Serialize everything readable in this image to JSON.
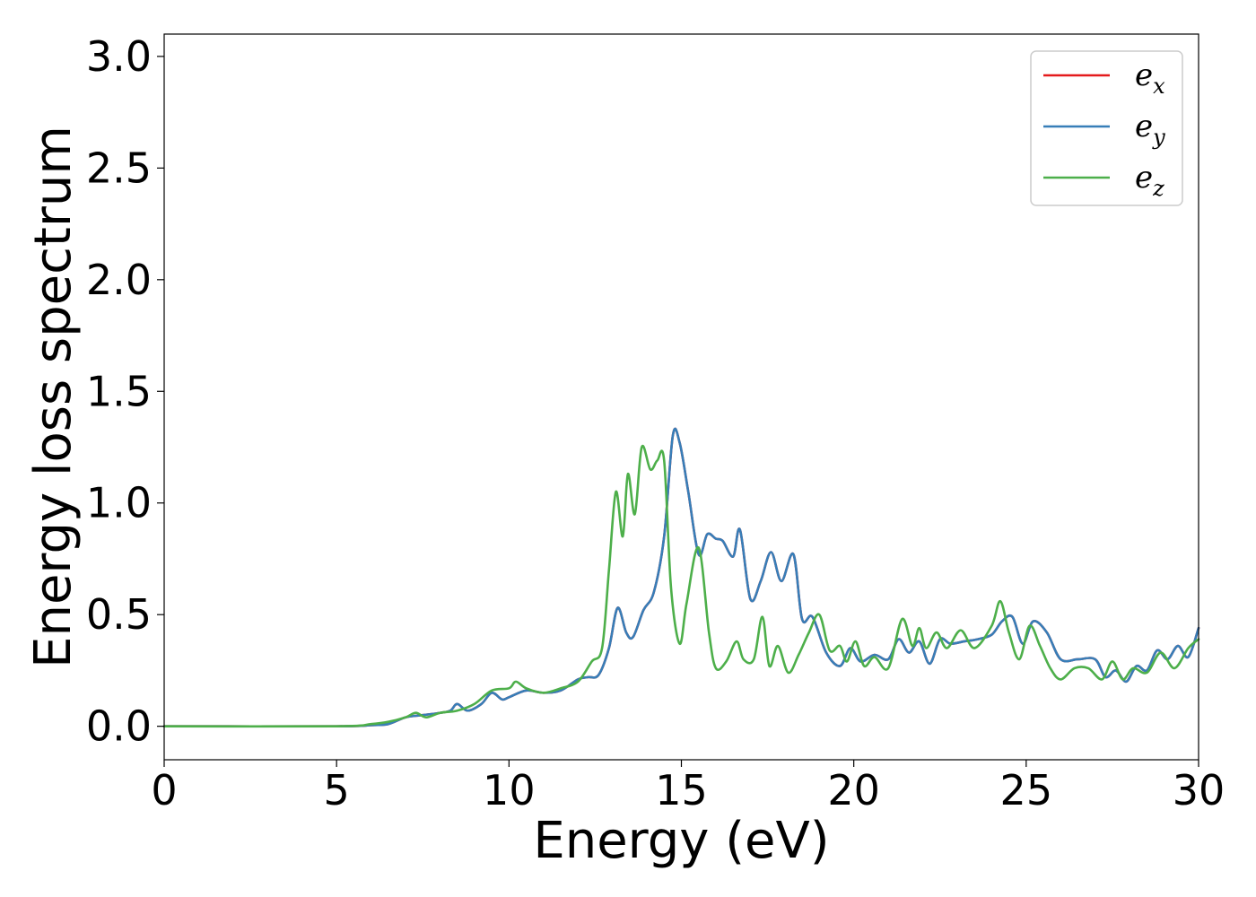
{
  "chart_data": {
    "type": "line",
    "title": "",
    "xlabel": "Energy (eV)",
    "ylabel": "Energy loss spectrum",
    "xlim": [
      0,
      30
    ],
    "ylim": [
      -0.15,
      3.1
    ],
    "xticks": [
      "0",
      "5",
      "10",
      "15",
      "20",
      "25",
      "30"
    ],
    "yticks": [
      "0.0",
      "0.5",
      "1.0",
      "1.5",
      "2.0",
      "2.5",
      "3.0"
    ],
    "grid": false,
    "legend_position": "top-right",
    "series": [
      {
        "name": "e",
        "sub": "x",
        "color": "#e41a1c",
        "x": [
          0,
          5,
          6,
          6.5,
          7,
          7.5,
          8,
          8.3,
          8.5,
          8.8,
          9.2,
          9.5,
          9.8,
          10,
          10.5,
          11,
          11.5,
          12,
          12.3,
          12.6,
          12.9,
          13.15,
          13.4,
          13.6,
          13.9,
          14.2,
          14.5,
          14.75,
          14.95,
          15.2,
          15.5,
          15.75,
          16,
          16.2,
          16.5,
          16.7,
          17,
          17.3,
          17.6,
          17.9,
          18.25,
          18.5,
          18.8,
          19.2,
          19.6,
          19.9,
          20.2,
          20.6,
          21,
          21.3,
          21.6,
          21.9,
          22.2,
          22.5,
          22.8,
          23.2,
          23.6,
          24,
          24.3,
          24.6,
          24.9,
          25.2,
          25.6,
          26,
          26.5,
          27,
          27.3,
          27.6,
          27.9,
          28.2,
          28.5,
          28.8,
          29.1,
          29.4,
          29.7,
          30
        ],
        "y": [
          0,
          0,
          0.005,
          0.01,
          0.04,
          0.05,
          0.06,
          0.07,
          0.1,
          0.07,
          0.1,
          0.15,
          0.12,
          0.13,
          0.16,
          0.15,
          0.16,
          0.21,
          0.22,
          0.23,
          0.35,
          0.53,
          0.42,
          0.4,
          0.52,
          0.6,
          0.85,
          1.3,
          1.27,
          1.05,
          0.77,
          0.86,
          0.84,
          0.83,
          0.76,
          0.88,
          0.57,
          0.65,
          0.78,
          0.65,
          0.77,
          0.48,
          0.49,
          0.33,
          0.27,
          0.35,
          0.29,
          0.32,
          0.3,
          0.39,
          0.33,
          0.38,
          0.28,
          0.39,
          0.37,
          0.38,
          0.39,
          0.41,
          0.47,
          0.49,
          0.37,
          0.47,
          0.42,
          0.3,
          0.3,
          0.3,
          0.22,
          0.25,
          0.2,
          0.27,
          0.25,
          0.34,
          0.3,
          0.36,
          0.31,
          0.44
        ]
      },
      {
        "name": "e",
        "sub": "y",
        "color": "#377eb8",
        "x": [
          0,
          5,
          6,
          6.5,
          7,
          7.5,
          8,
          8.3,
          8.5,
          8.8,
          9.2,
          9.5,
          9.8,
          10,
          10.5,
          11,
          11.5,
          12,
          12.3,
          12.6,
          12.9,
          13.15,
          13.4,
          13.6,
          13.9,
          14.2,
          14.5,
          14.75,
          14.95,
          15.2,
          15.5,
          15.75,
          16,
          16.2,
          16.5,
          16.7,
          17,
          17.3,
          17.6,
          17.9,
          18.25,
          18.5,
          18.8,
          19.2,
          19.6,
          19.9,
          20.2,
          20.6,
          21,
          21.3,
          21.6,
          21.9,
          22.2,
          22.5,
          22.8,
          23.2,
          23.6,
          24,
          24.3,
          24.6,
          24.9,
          25.2,
          25.6,
          26,
          26.5,
          27,
          27.3,
          27.6,
          27.9,
          28.2,
          28.5,
          28.8,
          29.1,
          29.4,
          29.7,
          30
        ],
        "y": [
          0,
          0,
          0.005,
          0.01,
          0.04,
          0.05,
          0.06,
          0.07,
          0.1,
          0.07,
          0.1,
          0.15,
          0.12,
          0.13,
          0.16,
          0.15,
          0.16,
          0.21,
          0.22,
          0.23,
          0.35,
          0.53,
          0.42,
          0.4,
          0.52,
          0.6,
          0.85,
          1.3,
          1.27,
          1.05,
          0.77,
          0.86,
          0.84,
          0.83,
          0.76,
          0.88,
          0.57,
          0.65,
          0.78,
          0.65,
          0.77,
          0.48,
          0.49,
          0.33,
          0.27,
          0.35,
          0.29,
          0.32,
          0.3,
          0.39,
          0.33,
          0.38,
          0.28,
          0.39,
          0.37,
          0.38,
          0.39,
          0.41,
          0.47,
          0.49,
          0.37,
          0.47,
          0.42,
          0.3,
          0.3,
          0.3,
          0.22,
          0.25,
          0.2,
          0.27,
          0.25,
          0.34,
          0.3,
          0.36,
          0.31,
          0.44
        ]
      },
      {
        "name": "e",
        "sub": "z",
        "color": "#4daf4a",
        "x": [
          0,
          5,
          6,
          6.5,
          7,
          7.3,
          7.6,
          8,
          8.5,
          9,
          9.5,
          10,
          10.2,
          10.5,
          11,
          11.5,
          12,
          12.4,
          12.7,
          12.9,
          13.1,
          13.3,
          13.45,
          13.65,
          13.85,
          14.1,
          14.3,
          14.5,
          14.7,
          14.95,
          15.15,
          15.5,
          15.8,
          16,
          16.3,
          16.6,
          16.8,
          17.1,
          17.35,
          17.55,
          17.8,
          18.1,
          18.4,
          18.7,
          19,
          19.3,
          19.6,
          19.8,
          20.05,
          20.3,
          20.6,
          21,
          21.4,
          21.7,
          21.9,
          22.1,
          22.4,
          22.7,
          23.1,
          23.5,
          24,
          24.25,
          24.5,
          24.8,
          25.1,
          25.4,
          25.7,
          26,
          26.4,
          26.8,
          27.2,
          27.5,
          27.8,
          28.1,
          28.5,
          28.9,
          29.3,
          29.7,
          30
        ],
        "y": [
          0,
          0,
          0.01,
          0.02,
          0.04,
          0.06,
          0.04,
          0.06,
          0.07,
          0.1,
          0.16,
          0.17,
          0.2,
          0.17,
          0.15,
          0.17,
          0.2,
          0.29,
          0.35,
          0.7,
          1.05,
          0.85,
          1.13,
          0.95,
          1.25,
          1.15,
          1.19,
          1.19,
          0.62,
          0.37,
          0.55,
          0.8,
          0.42,
          0.26,
          0.29,
          0.38,
          0.3,
          0.3,
          0.49,
          0.27,
          0.36,
          0.24,
          0.32,
          0.42,
          0.5,
          0.34,
          0.36,
          0.29,
          0.38,
          0.27,
          0.31,
          0.26,
          0.48,
          0.36,
          0.44,
          0.35,
          0.42,
          0.35,
          0.43,
          0.35,
          0.45,
          0.56,
          0.42,
          0.3,
          0.45,
          0.36,
          0.26,
          0.21,
          0.26,
          0.26,
          0.21,
          0.29,
          0.21,
          0.26,
          0.24,
          0.33,
          0.26,
          0.35,
          0.39
        ]
      }
    ]
  }
}
